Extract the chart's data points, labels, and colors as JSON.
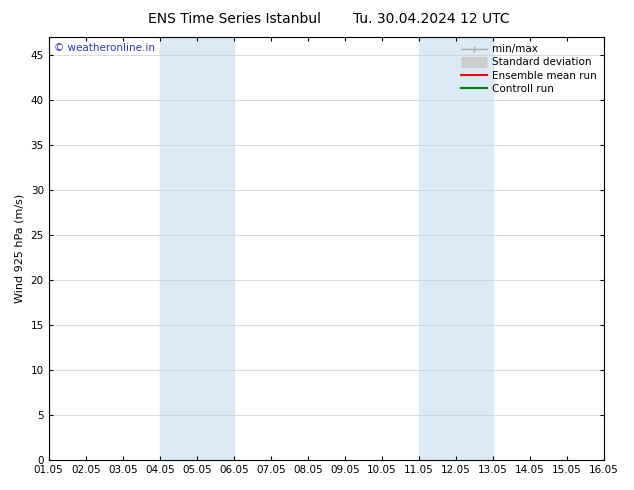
{
  "title": "ENS Time Series Istanbul",
  "title2": "Tu. 30.04.2024 12 UTC",
  "ylabel": "Wind 925 hPa (m/s)",
  "watermark": "© weatheronline.in",
  "xlim": [
    0,
    15
  ],
  "ylim": [
    0,
    47
  ],
  "yticks": [
    0,
    5,
    10,
    15,
    20,
    25,
    30,
    35,
    40,
    45
  ],
  "xtick_labels": [
    "01.05",
    "02.05",
    "03.05",
    "04.05",
    "05.05",
    "06.05",
    "07.05",
    "08.05",
    "09.05",
    "10.05",
    "11.05",
    "12.05",
    "13.05",
    "14.05",
    "15.05",
    "16.05"
  ],
  "shaded_bands": [
    {
      "xmin": 3,
      "xmax": 5,
      "color": "#daeaf7"
    },
    {
      "xmin": 10,
      "xmax": 12,
      "color": "#daeaf7"
    }
  ],
  "legend_entries": [
    {
      "label": "min/max",
      "color": "#aaaaaa",
      "lw": 1.0,
      "type": "line_with_caps"
    },
    {
      "label": "Standard deviation",
      "color": "#cccccc",
      "lw": 8,
      "type": "thick_line"
    },
    {
      "label": "Ensemble mean run",
      "color": "red",
      "lw": 1.5,
      "type": "line"
    },
    {
      "label": "Controll run",
      "color": "green",
      "lw": 1.5,
      "type": "line"
    }
  ],
  "bg_color": "#ffffff",
  "plot_bg_color": "#ffffff",
  "grid_color": "#cccccc",
  "title_fontsize": 10,
  "axis_label_fontsize": 8,
  "tick_fontsize": 7.5,
  "watermark_color": "#3333cc",
  "watermark_fontsize": 7.5,
  "legend_fontsize": 7.5
}
